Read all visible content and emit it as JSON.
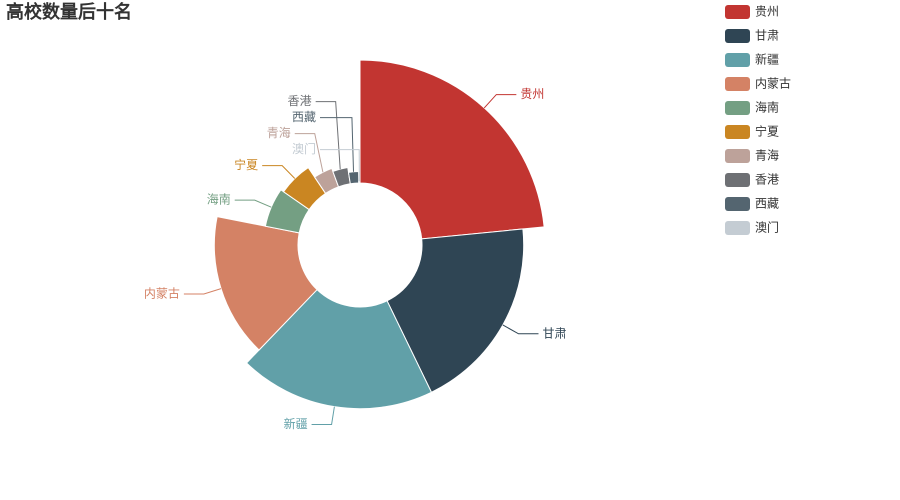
{
  "chart_data": {
    "type": "rose",
    "title": "高校数量后十名",
    "categories": [
      "贵州",
      "甘肃",
      "新疆",
      "内蒙古",
      "海南",
      "宁夏",
      "青海",
      "香港",
      "西藏",
      "澳门"
    ],
    "values": [
      75,
      62,
      62,
      51,
      21,
      19,
      12,
      10,
      7,
      1
    ],
    "colors": [
      "#c23531",
      "#2f4554",
      "#61a0a8",
      "#d48265",
      "#749f83",
      "#ca8622",
      "#bda29a",
      "#6e7074",
      "#546570",
      "#c4ccd3"
    ],
    "legend": "top-right"
  }
}
